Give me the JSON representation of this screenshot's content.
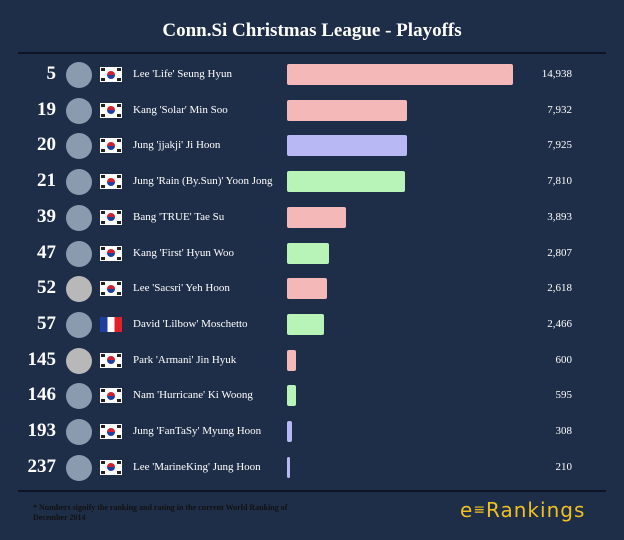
{
  "title": "Conn.Si Christmas League - Playoffs",
  "colors": {
    "terran": "#f4b8b8",
    "protoss": "#b8b8f4",
    "zerg": "#b8f4b8",
    "background": "#1f2e48"
  },
  "chart_data": {
    "type": "bar",
    "orientation": "horizontal",
    "title": "Conn.Si Christmas League - Playoffs",
    "xlim": [
      0,
      14938
    ],
    "rows": [
      {
        "rank": "5",
        "name": "Lee 'Life' Seung Hyun",
        "flag": "korea",
        "value": 14938,
        "label": "14,938",
        "color": "#f4b8b8",
        "avatar": true
      },
      {
        "rank": "19",
        "name": "Kang 'Solar' Min Soo",
        "flag": "korea",
        "value": 7932,
        "label": "7,932",
        "color": "#f4b8b8",
        "avatar": true
      },
      {
        "rank": "20",
        "name": "Jung 'jjakji' Ji Hoon",
        "flag": "korea",
        "value": 7925,
        "label": "7,925",
        "color": "#b8b8f4",
        "avatar": true
      },
      {
        "rank": "21",
        "name": "Jung 'Rain (By.Sun)' Yoon Jong",
        "flag": "korea",
        "value": 7810,
        "label": "7,810",
        "color": "#b8f4b8",
        "avatar": true
      },
      {
        "rank": "39",
        "name": "Bang 'TRUE' Tae Su",
        "flag": "korea",
        "value": 3893,
        "label": "3,893",
        "color": "#f4b8b8",
        "avatar": true
      },
      {
        "rank": "47",
        "name": "Kang 'First' Hyun Woo",
        "flag": "korea",
        "value": 2807,
        "label": "2,807",
        "color": "#b8f4b8",
        "avatar": true
      },
      {
        "rank": "52",
        "name": "Lee 'Sacsri' Yeh Hoon",
        "flag": "korea",
        "value": 2618,
        "label": "2,618",
        "color": "#f4b8b8",
        "avatar": false
      },
      {
        "rank": "57",
        "name": "David 'Lilbow' Moschetto",
        "flag": "france",
        "value": 2466,
        "label": "2,466",
        "color": "#b8f4b8",
        "avatar": true
      },
      {
        "rank": "145",
        "name": "Park 'Armani' Jin Hyuk",
        "flag": "korea",
        "value": 600,
        "label": "600",
        "color": "#f4b8b8",
        "avatar": false
      },
      {
        "rank": "146",
        "name": "Nam 'Hurricane' Ki Woong",
        "flag": "korea",
        "value": 595,
        "label": "595",
        "color": "#b8f4b8",
        "avatar": true
      },
      {
        "rank": "193",
        "name": "Jung 'FanTaSy' Myung Hoon",
        "flag": "korea",
        "value": 308,
        "label": "308",
        "color": "#b8b8f4",
        "avatar": true
      },
      {
        "rank": "237",
        "name": "Lee 'MarineKing' Jung Hoon",
        "flag": "korea",
        "value": 210,
        "label": "210",
        "color": "#b8b8f4",
        "avatar": true
      }
    ]
  },
  "footnote": "* Numbers signify the ranking and rating in the current World Ranking of December 2014",
  "logo": "e:Rankings"
}
